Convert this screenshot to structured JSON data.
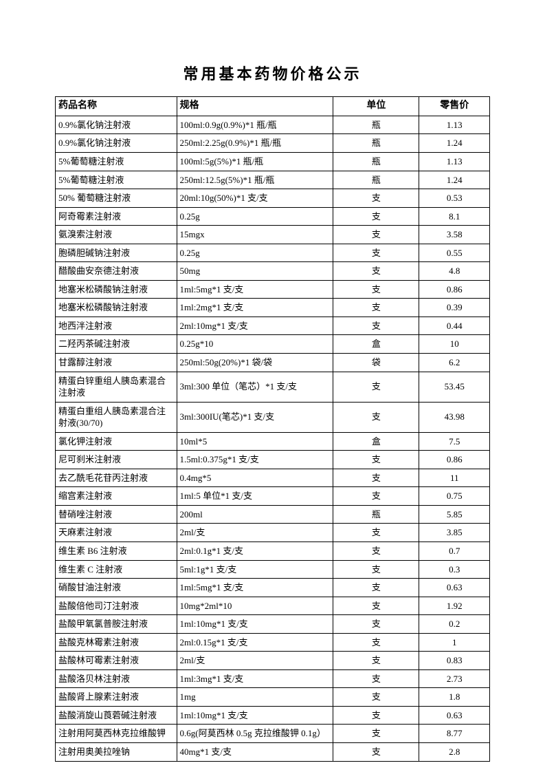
{
  "title": "常用基本药物价格公示",
  "columns": [
    "药品名称",
    "规格",
    "单位",
    "零售价"
  ],
  "rows": [
    [
      "0.9%氯化钠注射液",
      "100ml:0.9g(0.9%)*1 瓶/瓶",
      "瓶",
      "1.13"
    ],
    [
      "0.9%氯化钠注射液",
      "250ml:2.25g(0.9%)*1 瓶/瓶",
      "瓶",
      "1.24"
    ],
    [
      "5%葡萄糖注射液",
      "100ml:5g(5%)*1 瓶/瓶",
      "瓶",
      "1.13"
    ],
    [
      "5%葡萄糖注射液",
      "250ml:12.5g(5%)*1 瓶/瓶",
      "瓶",
      "1.24"
    ],
    [
      "50% 葡萄糖注射液",
      "20ml:10g(50%)*1 支/支",
      "支",
      "0.53"
    ],
    [
      "阿奇霉素注射液",
      "0.25g",
      "支",
      "8.1"
    ],
    [
      "氨溴索注射液",
      "15mgx",
      "支",
      "3.58"
    ],
    [
      "胞磷胆碱钠注射液",
      "0.25g",
      "支",
      "0.55"
    ],
    [
      "醋酸曲安奈德注射液",
      "50mg",
      "支",
      "4.8"
    ],
    [
      "地塞米松磷酸钠注射液",
      "1ml:5mg*1 支/支",
      "支",
      "0.86"
    ],
    [
      "地塞米松磷酸钠注射液",
      "1ml:2mg*1 支/支",
      "支",
      "0.39"
    ],
    [
      "地西泮注射液",
      "2ml:10mg*1 支/支",
      "支",
      "0.44"
    ],
    [
      "二羟丙茶碱注射液",
      "0.25g*10",
      "盒",
      "10"
    ],
    [
      "甘露醇注射液",
      "250ml:50g(20%)*1 袋/袋",
      "袋",
      "6.2"
    ],
    [
      "精蛋白锌重组人胰岛素混合注射液",
      "3ml:300 单位（笔芯）*1 支/支",
      "支",
      "53.45"
    ],
    [
      "精蛋白重组人胰岛素混合注射液(30/70)",
      "3ml:300IU(笔芯)*1 支/支",
      "支",
      "43.98"
    ],
    [
      "氯化钾注射液",
      "10ml*5",
      "盒",
      "7.5"
    ],
    [
      "尼可刹米注射液",
      "1.5ml:0.375g*1 支/支",
      "支",
      "0.86"
    ],
    [
      "去乙酰毛花苷丙注射液",
      "0.4mg*5",
      "支",
      "11"
    ],
    [
      "缩宫素注射液",
      "1ml:5 单位*1 支/支",
      "支",
      "0.75"
    ],
    [
      "替硝唑注射液",
      "200ml",
      "瓶",
      "5.85"
    ],
    [
      "天麻素注射液",
      "2ml/支",
      "支",
      "3.85"
    ],
    [
      "维生素 B6 注射液",
      "2ml:0.1g*1 支/支",
      "支",
      "0.7"
    ],
    [
      "维生素 C 注射液",
      "5ml:1g*1 支/支",
      "支",
      "0.3"
    ],
    [
      "硝酸甘油注射液",
      "1ml:5mg*1 支/支",
      "支",
      "0.63"
    ],
    [
      "盐酸倍他司汀注射液",
      "10mg*2ml*10",
      "支",
      "1.92"
    ],
    [
      "盐酸甲氧氯普胺注射液",
      "1ml:10mg*1 支/支",
      "支",
      "0.2"
    ],
    [
      "盐酸克林霉素注射液",
      "2ml:0.15g*1 支/支",
      "支",
      "1"
    ],
    [
      "盐酸林可霉素注射液",
      "2ml/支",
      "支",
      "0.83"
    ],
    [
      "盐酸洛贝林注射液",
      "1ml:3mg*1 支/支",
      "支",
      "2.73"
    ],
    [
      "盐酸肾上腺素注射液",
      "1mg",
      "支",
      "1.8"
    ],
    [
      "盐酸消旋山莨菪碱注射液",
      "1ml:10mg*1 支/支",
      "支",
      "0.63"
    ],
    [
      "注射用阿莫西林克拉维酸钾",
      "0.6g(阿莫西林 0.5g 克拉维酸钾 0.1g）",
      "支",
      "8.77"
    ],
    [
      "注射用奥美拉唑钠",
      "40mg*1 支/支",
      "支",
      "2.8"
    ]
  ]
}
